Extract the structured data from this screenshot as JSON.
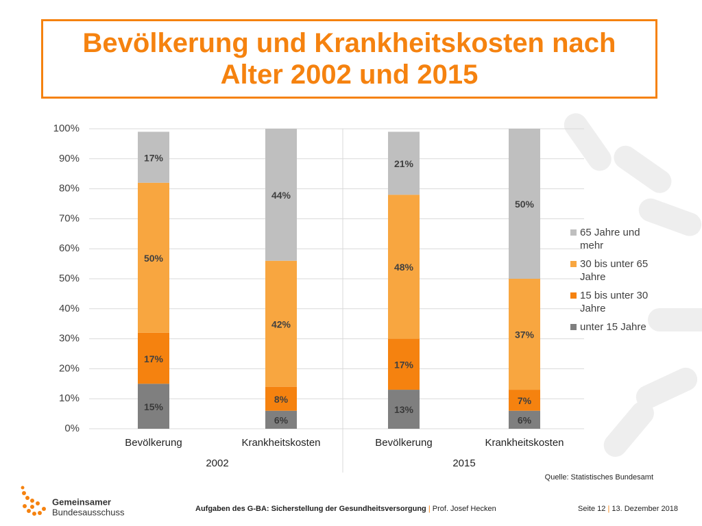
{
  "chart_data": {
    "type": "stacked_bar",
    "title": "Bevölkerung und Krankheitskosten nach Alter 2002 und 2015",
    "categories": [
      "Bevölkerung",
      "Krankheitskosten",
      "Bevölkerung",
      "Krankheitskosten"
    ],
    "group_labels": [
      "2002",
      "2015"
    ],
    "series": [
      {
        "name": "unter 15 Jahre",
        "color": "#7f7f7f",
        "values": [
          15,
          6,
          13,
          6
        ],
        "value_labels": [
          "15%",
          "6%",
          "13%",
          "6%"
        ]
      },
      {
        "name": "15 bis unter 30 Jahre",
        "color": "#f5820f",
        "values": [
          17,
          8,
          17,
          7
        ],
        "value_labels": [
          "17%",
          "8%",
          "17%",
          "7%"
        ]
      },
      {
        "name": "30 bis unter 65 Jahre",
        "color": "#f8a640",
        "values": [
          50,
          42,
          48,
          37
        ],
        "value_labels": [
          "50%",
          "42%",
          "48%",
          "37%"
        ]
      },
      {
        "name": "65 Jahre und mehr",
        "color": "#bfbfbf",
        "values": [
          17,
          44,
          21,
          50
        ],
        "value_labels": [
          "17%",
          "44%",
          "21%",
          "50%"
        ]
      }
    ],
    "ylim": [
      0,
      100
    ],
    "yticks": [
      {
        "value": 0,
        "label": "0%"
      },
      {
        "value": 10,
        "label": "10%"
      },
      {
        "value": 20,
        "label": "20%"
      },
      {
        "value": 30,
        "label": "30%"
      },
      {
        "value": 40,
        "label": "40%"
      },
      {
        "value": 50,
        "label": "50%"
      },
      {
        "value": 60,
        "label": "60%"
      },
      {
        "value": 70,
        "label": "70%"
      },
      {
        "value": 80,
        "label": "80%"
      },
      {
        "value": 90,
        "label": "90%"
      },
      {
        "value": 100,
        "label": "100%"
      }
    ],
    "grid": true,
    "legend": "right",
    "source": "Quelle: Statistisches Bundesamt"
  },
  "logo": {
    "line1": "Gemeinsamer",
    "line2": "Bundesausschuss"
  },
  "footer": {
    "topic": "Aufgaben des G-BA: Sicherstellung der Gesundheitsversorgung",
    "separator": "|",
    "author": "Prof. Josef Hecken",
    "page": "Seite 12",
    "date": "13. Dezember 2018"
  }
}
